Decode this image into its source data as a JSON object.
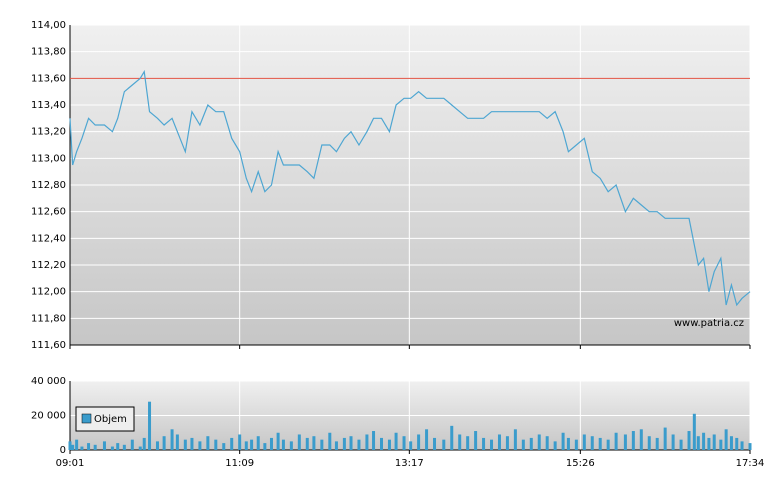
{
  "chart_data": [
    {
      "type": "line",
      "x": [
        0,
        2,
        5,
        9,
        14,
        19,
        26,
        32,
        36,
        41,
        47,
        53,
        56,
        60,
        66,
        71,
        77,
        81,
        87,
        92,
        98,
        104,
        110,
        116,
        122,
        128,
        133,
        137,
        142,
        147,
        152,
        157,
        161,
        167,
        173,
        179,
        184,
        190,
        196,
        201,
        207,
        212,
        218,
        224,
        229,
        235,
        241,
        246,
        252,
        257,
        263,
        269,
        275,
        282,
        288,
        294,
        300,
        306,
        312,
        318,
        324,
        330,
        336,
        342,
        348,
        354,
        360,
        366,
        372,
        376,
        382,
        388,
        394,
        400,
        406,
        412,
        419,
        425,
        431,
        437,
        443,
        449,
        455,
        461,
        467,
        471,
        474,
        478,
        482,
        486,
        491,
        495,
        499,
        503,
        507,
        513
      ],
      "series": [
        {
          "color": "#4ea6d2",
          "values": [
            113.3,
            112.95,
            113.05,
            113.15,
            113.3,
            113.25,
            113.25,
            113.2,
            113.3,
            113.5,
            113.55,
            113.6,
            113.65,
            113.35,
            113.3,
            113.25,
            113.3,
            113.2,
            113.05,
            113.35,
            113.25,
            113.4,
            113.35,
            113.35,
            113.15,
            113.05,
            112.85,
            112.75,
            112.9,
            112.75,
            112.8,
            113.05,
            112.95,
            112.95,
            112.95,
            112.9,
            112.85,
            113.1,
            113.1,
            113.05,
            113.15,
            113.2,
            113.1,
            113.2,
            113.3,
            113.3,
            113.2,
            113.4,
            113.45,
            113.45,
            113.5,
            113.45,
            113.45,
            113.45,
            113.4,
            113.35,
            113.3,
            113.3,
            113.3,
            113.35,
            113.35,
            113.35,
            113.35,
            113.35,
            113.35,
            113.35,
            113.3,
            113.35,
            113.2,
            113.05,
            113.1,
            113.15,
            112.9,
            112.85,
            112.75,
            112.8,
            112.6,
            112.7,
            112.65,
            112.6,
            112.6,
            112.55,
            112.55,
            112.55,
            112.55,
            112.35,
            112.2,
            112.25,
            112.0,
            112.15,
            112.25,
            111.9,
            112.05,
            111.9,
            111.95,
            112.0
          ]
        }
      ],
      "reference_line": 113.6,
      "reference_color": "#e05040",
      "annotation": "www.patria.cz",
      "xlim": [
        0,
        513
      ],
      "ylim": [
        111.6,
        114.0
      ],
      "yticks": [
        {
          "value": 111.6,
          "label": "111,60"
        },
        {
          "value": 111.8,
          "label": "111,80"
        },
        {
          "value": 112.0,
          "label": "112,00"
        },
        {
          "value": 112.2,
          "label": "112,20"
        },
        {
          "value": 112.4,
          "label": "112,40"
        },
        {
          "value": 112.6,
          "label": "112,60"
        },
        {
          "value": 112.8,
          "label": "112,80"
        },
        {
          "value": 113.0,
          "label": "113,00"
        },
        {
          "value": 113.2,
          "label": "113,20"
        },
        {
          "value": 113.4,
          "label": "113,40"
        },
        {
          "value": 113.6,
          "label": "113,60"
        },
        {
          "value": 113.8,
          "label": "113,80"
        },
        {
          "value": 114.0,
          "label": "114,00"
        }
      ],
      "xticks": [
        {
          "value": 0,
          "label": "09:01"
        },
        {
          "value": 128,
          "label": "11:09"
        },
        {
          "value": 256,
          "label": "13:17"
        },
        {
          "value": 385,
          "label": "15:26"
        },
        {
          "value": 513,
          "label": "17:34"
        }
      ],
      "grid": true
    },
    {
      "type": "bar",
      "x": [
        0,
        2,
        5,
        9,
        14,
        19,
        26,
        32,
        36,
        41,
        47,
        53,
        56,
        60,
        66,
        71,
        77,
        81,
        87,
        92,
        98,
        104,
        110,
        116,
        122,
        128,
        133,
        137,
        142,
        147,
        152,
        157,
        161,
        167,
        173,
        179,
        184,
        190,
        196,
        201,
        207,
        212,
        218,
        224,
        229,
        235,
        241,
        246,
        252,
        257,
        263,
        269,
        275,
        282,
        288,
        294,
        300,
        306,
        312,
        318,
        324,
        330,
        336,
        342,
        348,
        354,
        360,
        366,
        372,
        376,
        382,
        388,
        394,
        400,
        406,
        412,
        419,
        425,
        431,
        437,
        443,
        449,
        455,
        461,
        467,
        471,
        474,
        478,
        482,
        486,
        491,
        495,
        499,
        503,
        507,
        513
      ],
      "series": [
        {
          "name": "Objem",
          "color": "#3a9ccc",
          "values": [
            5000,
            3000,
            6000,
            2000,
            4000,
            3000,
            5000,
            2000,
            4000,
            3000,
            6000,
            2000,
            7000,
            28000,
            5000,
            8000,
            12000,
            9000,
            6000,
            7000,
            5000,
            8000,
            6000,
            4000,
            7000,
            9000,
            5000,
            6000,
            8000,
            4000,
            7000,
            10000,
            6000,
            5000,
            9000,
            7000,
            8000,
            6000,
            10000,
            5000,
            7000,
            8000,
            6000,
            9000,
            11000,
            7000,
            6000,
            10000,
            8000,
            5000,
            9000,
            12000,
            7000,
            6000,
            14000,
            9000,
            8000,
            11000,
            7000,
            6000,
            9000,
            8000,
            12000,
            6000,
            7000,
            9000,
            8000,
            5000,
            10000,
            7000,
            6000,
            9000,
            8000,
            7000,
            6000,
            10000,
            9000,
            11000,
            12000,
            8000,
            7000,
            13000,
            9000,
            6000,
            11000,
            21000,
            8000,
            10000,
            7000,
            9000,
            6000,
            12000,
            8000,
            7000,
            5000,
            4000
          ]
        }
      ],
      "xlim": [
        0,
        513
      ],
      "ylim": [
        0,
        40000
      ],
      "yticks": [
        0,
        {
          "value": 20000,
          "label": "20 000"
        },
        {
          "value": 40000,
          "label": "40 000"
        }
      ],
      "legend": "top-left",
      "grid": true
    }
  ]
}
